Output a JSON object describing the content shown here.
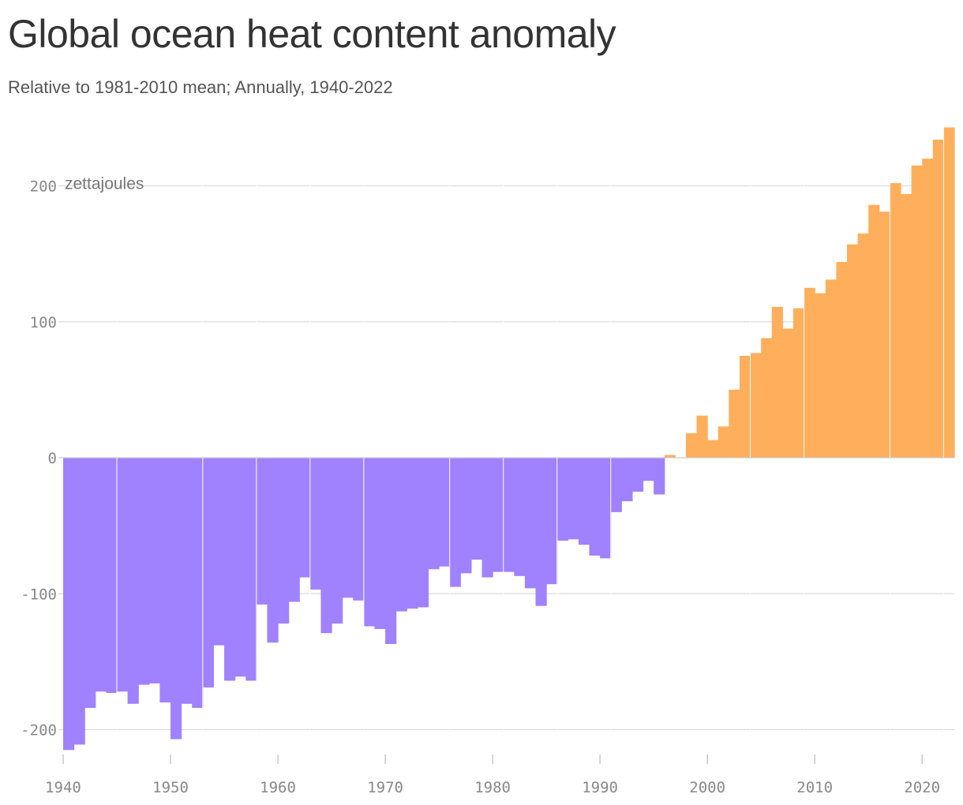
{
  "chart_data": {
    "type": "bar",
    "title": "Global ocean heat content anomaly",
    "subtitle": "Relative to 1981-2010 mean; Annually, 1940-2022",
    "unit_label": "zettajoules",
    "xlabel": "",
    "ylabel": "",
    "ylim": [
      -215,
      243
    ],
    "xlim": [
      1940,
      2023
    ],
    "yticks": [
      -200,
      -100,
      0,
      100,
      200
    ],
    "xticks": [
      1940,
      1950,
      1960,
      1970,
      1980,
      1990,
      2000,
      2010,
      2020
    ],
    "grid": "horizontal",
    "legend": "none",
    "colors": {
      "negative": "#a082ff",
      "positive": "#ffae5c",
      "grid": "#dddddd",
      "title": "#333333",
      "subtitle": "#555555",
      "tick": "#888888"
    },
    "years": [
      1940,
      1941,
      1942,
      1943,
      1944,
      1945,
      1946,
      1947,
      1948,
      1949,
      1950,
      1951,
      1952,
      1953,
      1954,
      1955,
      1956,
      1957,
      1958,
      1959,
      1960,
      1961,
      1962,
      1963,
      1964,
      1965,
      1966,
      1967,
      1968,
      1969,
      1970,
      1971,
      1972,
      1973,
      1974,
      1975,
      1976,
      1977,
      1978,
      1979,
      1980,
      1981,
      1982,
      1983,
      1984,
      1985,
      1986,
      1987,
      1988,
      1989,
      1990,
      1991,
      1992,
      1993,
      1994,
      1995,
      1996,
      1997,
      1998,
      1999,
      2000,
      2001,
      2002,
      2003,
      2004,
      2005,
      2006,
      2007,
      2008,
      2009,
      2010,
      2011,
      2012,
      2013,
      2014,
      2015,
      2016,
      2017,
      2018,
      2019,
      2020,
      2021,
      2022
    ],
    "values": [
      -215,
      -211,
      -184,
      -172,
      -173,
      -172,
      -181,
      -167,
      -166,
      -180,
      -207,
      -181,
      -184,
      -169,
      -138,
      -164,
      -161,
      -164,
      -108,
      -136,
      -122,
      -106,
      -88,
      -97,
      -129,
      -122,
      -103,
      -105,
      -124,
      -126,
      -137,
      -113,
      -111,
      -110,
      -82,
      -80,
      -95,
      -85,
      -75,
      -88,
      -84,
      -84,
      -87,
      -96,
      -109,
      -93,
      -61,
      -60,
      -64,
      -72,
      -74,
      -40,
      -32,
      -25,
      -17,
      -27,
      2,
      0,
      18,
      31,
      13,
      23,
      50,
      75,
      77,
      88,
      111,
      95,
      110,
      125,
      121,
      131,
      144,
      157,
      165,
      186,
      181,
      202,
      194,
      215,
      220,
      234,
      243
    ]
  }
}
